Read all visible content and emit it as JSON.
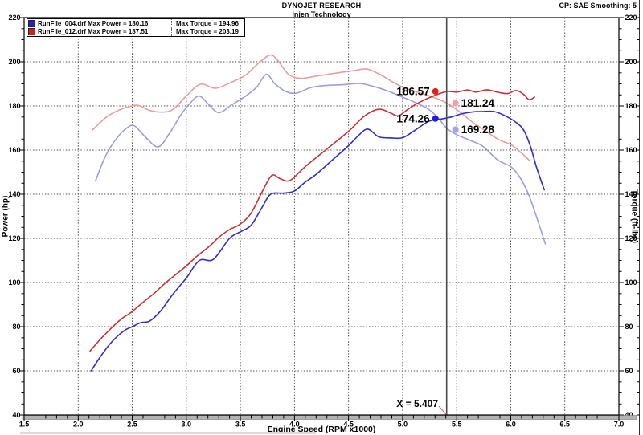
{
  "header": {
    "title": "DYNOJET RESEARCH",
    "subtitle": "Injen Technology",
    "settings": "CP: SAE  Smoothing: 5"
  },
  "legend": {
    "rows": [
      {
        "file": "RunFile_004.drf",
        "power": "Max Power = 180.16",
        "torque": "Max Torque = 194.96",
        "color": "#2222cc"
      },
      {
        "file": "RunFile_012.drf",
        "power": "Max Power = 187.51",
        "torque": "Max Torque = 203.19",
        "color": "#cc2222"
      }
    ]
  },
  "axes": {
    "x": {
      "label": "Engine Speed (RPM x1000)",
      "min": 1.5,
      "max": 7.0,
      "major": 0.5,
      "minor": 0.1
    },
    "y_left": {
      "label": "Power (hp)",
      "min": 40,
      "max": 220,
      "major": 20,
      "minor": 5
    },
    "y_right": {
      "label": "Torque (ft-lbs)",
      "min": 40,
      "max": 220,
      "major": 20,
      "minor": 5
    }
  },
  "cursor": {
    "label": "X = 5.407",
    "x": 5.407,
    "readouts": [
      {
        "value": "186.57",
        "y": 186.57,
        "series": "RunFile_012 Power",
        "side": "left",
        "dot_color": "#e81c1c"
      },
      {
        "value": "181.24",
        "y": 181.24,
        "series": "RunFile_012 Torque",
        "side": "right",
        "dot_color": "#f4a0a0"
      },
      {
        "value": "174.26",
        "y": 174.26,
        "series": "RunFile_004 Power",
        "side": "left",
        "dot_color": "#1c1ce8"
      },
      {
        "value": "169.28",
        "y": 169.28,
        "series": "RunFile_004 Torque",
        "side": "right",
        "dot_color": "#a0a0f4"
      }
    ]
  },
  "chart_data": {
    "type": "line",
    "xlabel": "Engine Speed (RPM x1000)",
    "ylabel_left": "Power (hp)",
    "ylabel_right": "Torque (ft-lbs)",
    "xlim": [
      1.5,
      7.0
    ],
    "ylim": [
      40,
      220
    ],
    "grid": true,
    "legend_position": "top-left",
    "series": [
      {
        "name": "RunFile_012 Torque",
        "axis": "right",
        "color": "#e89c9c",
        "points": [
          [
            2.13,
            169
          ],
          [
            2.25,
            174.5
          ],
          [
            2.35,
            177.5
          ],
          [
            2.48,
            179.8
          ],
          [
            2.56,
            180.2
          ],
          [
            2.66,
            178
          ],
          [
            2.78,
            177.2
          ],
          [
            2.88,
            178.5
          ],
          [
            3.0,
            184.5
          ],
          [
            3.13,
            189.8
          ],
          [
            3.27,
            188
          ],
          [
            3.42,
            190.8
          ],
          [
            3.55,
            194
          ],
          [
            3.66,
            199
          ],
          [
            3.77,
            203
          ],
          [
            3.84,
            201
          ],
          [
            3.94,
            194.5
          ],
          [
            4.05,
            192.5
          ],
          [
            4.2,
            193.5
          ],
          [
            4.4,
            195
          ],
          [
            4.55,
            196
          ],
          [
            4.67,
            196.7
          ],
          [
            4.8,
            194
          ],
          [
            4.92,
            190.5
          ],
          [
            5.0,
            188.5
          ],
          [
            5.15,
            186
          ],
          [
            5.28,
            184
          ],
          [
            5.41,
            181.3
          ],
          [
            5.55,
            176.5
          ],
          [
            5.65,
            172.5
          ],
          [
            5.75,
            169.3
          ],
          [
            5.88,
            165
          ],
          [
            6.0,
            162.5
          ],
          [
            6.08,
            159.5
          ],
          [
            6.18,
            155
          ]
        ]
      },
      {
        "name": "RunFile_004 Torque",
        "axis": "right",
        "color": "#9c9ce4",
        "points": [
          [
            2.16,
            146
          ],
          [
            2.25,
            157
          ],
          [
            2.35,
            165
          ],
          [
            2.45,
            170
          ],
          [
            2.52,
            171
          ],
          [
            2.62,
            166
          ],
          [
            2.74,
            161.5
          ],
          [
            2.85,
            168
          ],
          [
            2.95,
            176
          ],
          [
            3.05,
            182
          ],
          [
            3.12,
            184.5
          ],
          [
            3.2,
            181
          ],
          [
            3.3,
            177
          ],
          [
            3.42,
            180.5
          ],
          [
            3.55,
            184.5
          ],
          [
            3.65,
            188.5
          ],
          [
            3.74,
            194.3
          ],
          [
            3.82,
            190
          ],
          [
            3.92,
            186.5
          ],
          [
            4.02,
            185.8
          ],
          [
            4.15,
            188.3
          ],
          [
            4.3,
            189.3
          ],
          [
            4.45,
            189.6
          ],
          [
            4.6,
            190.2
          ],
          [
            4.72,
            189
          ],
          [
            4.85,
            187
          ],
          [
            5.0,
            184
          ],
          [
            5.12,
            181.5
          ],
          [
            5.24,
            178.5
          ],
          [
            5.33,
            174.5
          ],
          [
            5.41,
            169.8
          ],
          [
            5.5,
            167
          ],
          [
            5.62,
            164.5
          ],
          [
            5.74,
            161.8
          ],
          [
            5.88,
            155.5
          ],
          [
            6.0,
            152.5
          ],
          [
            6.08,
            148
          ],
          [
            6.16,
            140.5
          ],
          [
            6.23,
            131
          ],
          [
            6.29,
            122
          ],
          [
            6.32,
            117.5
          ]
        ]
      },
      {
        "name": "RunFile_012 Power",
        "axis": "left",
        "color": "#c83232",
        "points": [
          [
            2.11,
            69
          ],
          [
            2.2,
            74
          ],
          [
            2.3,
            79
          ],
          [
            2.4,
            83.5
          ],
          [
            2.49,
            86.5
          ],
          [
            2.6,
            91
          ],
          [
            2.7,
            95
          ],
          [
            2.8,
            99.5
          ],
          [
            2.9,
            103.5
          ],
          [
            3.0,
            107.5
          ],
          [
            3.1,
            112
          ],
          [
            3.22,
            116.7
          ],
          [
            3.3,
            120.5
          ],
          [
            3.4,
            124
          ],
          [
            3.5,
            126.5
          ],
          [
            3.6,
            131.5
          ],
          [
            3.7,
            141
          ],
          [
            3.79,
            148.5
          ],
          [
            3.87,
            147
          ],
          [
            3.96,
            146.3
          ],
          [
            4.1,
            152.5
          ],
          [
            4.3,
            160.5
          ],
          [
            4.5,
            168.5
          ],
          [
            4.65,
            175.5
          ],
          [
            4.78,
            178.5
          ],
          [
            4.88,
            177
          ],
          [
            4.96,
            175.5
          ],
          [
            5.05,
            178.5
          ],
          [
            5.15,
            181.5
          ],
          [
            5.3,
            184.8
          ],
          [
            5.41,
            186.5
          ],
          [
            5.5,
            186.3
          ],
          [
            5.6,
            187.2
          ],
          [
            5.68,
            186.3
          ],
          [
            5.78,
            187.3
          ],
          [
            5.88,
            186.2
          ],
          [
            5.97,
            185.6
          ],
          [
            6.05,
            187
          ],
          [
            6.12,
            185.2
          ],
          [
            6.17,
            182.8
          ],
          [
            6.22,
            184
          ]
        ]
      },
      {
        "name": "RunFile_004 Power",
        "axis": "left",
        "color": "#2e2ec8",
        "points": [
          [
            2.12,
            60
          ],
          [
            2.2,
            66
          ],
          [
            2.3,
            72.5
          ],
          [
            2.42,
            78
          ],
          [
            2.5,
            80
          ],
          [
            2.58,
            81.8
          ],
          [
            2.66,
            82.5
          ],
          [
            2.76,
            87
          ],
          [
            2.88,
            95
          ],
          [
            3.0,
            102
          ],
          [
            3.12,
            110
          ],
          [
            3.25,
            110.5
          ],
          [
            3.4,
            120
          ],
          [
            3.5,
            123
          ],
          [
            3.6,
            126
          ],
          [
            3.7,
            134
          ],
          [
            3.78,
            140
          ],
          [
            3.9,
            140.5
          ],
          [
            4.0,
            141.5
          ],
          [
            4.1,
            145.5
          ],
          [
            4.2,
            149
          ],
          [
            4.35,
            155.5
          ],
          [
            4.5,
            162
          ],
          [
            4.6,
            167
          ],
          [
            4.68,
            169.5
          ],
          [
            4.78,
            166
          ],
          [
            4.9,
            165.5
          ],
          [
            5.0,
            165.6
          ],
          [
            5.1,
            168.5
          ],
          [
            5.24,
            173
          ],
          [
            5.35,
            174
          ],
          [
            5.45,
            175
          ],
          [
            5.55,
            176.5
          ],
          [
            5.65,
            177.3
          ],
          [
            5.75,
            177.5
          ],
          [
            5.85,
            177.4
          ],
          [
            5.95,
            175.5
          ],
          [
            6.05,
            172.5
          ],
          [
            6.12,
            169
          ],
          [
            6.18,
            162
          ],
          [
            6.24,
            152
          ],
          [
            6.31,
            142
          ]
        ]
      }
    ]
  }
}
